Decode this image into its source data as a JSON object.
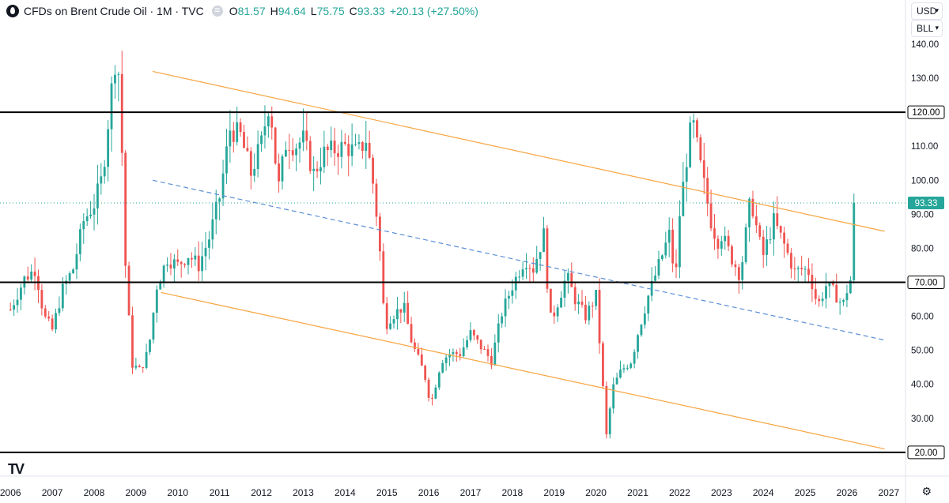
{
  "header": {
    "title": "CFDs on Brent Crude Oil · 1M · TVC",
    "equal_sign": "=",
    "o_label": "O",
    "o_value": "81.57",
    "h_label": "H",
    "h_value": "94.64",
    "l_label": "L",
    "l_value": "75.75",
    "c_label": "C",
    "c_value": "93.33",
    "change": "+20.13 (+27.50%)"
  },
  "controls": {
    "currency": "USD",
    "unit": "BLL"
  },
  "brand": "TV",
  "colors": {
    "up": "#26a69a",
    "down": "#ef5350",
    "channel": "#f7a541",
    "midline": "#5b8fd6",
    "level": "#000000"
  },
  "chart_data": {
    "type": "candlestick",
    "title": "CFDs on Brent Crude Oil · 1M · TVC",
    "xlim": [
      2005.75,
      2027.4
    ],
    "ylim": [
      13,
      153
    ],
    "x_ticks": [
      "2006",
      "2007",
      "2008",
      "2009",
      "2010",
      "2011",
      "2012",
      "2013",
      "2014",
      "2015",
      "2016",
      "2017",
      "2018",
      "2019",
      "2020",
      "2021",
      "2022",
      "2023",
      "2024",
      "2025",
      "2026",
      "2027"
    ],
    "y_ticks": [
      "30.00",
      "40.00",
      "50.00",
      "60.00",
      "80.00",
      "90.00",
      "100.00",
      "110.00",
      "130.00",
      "140.00"
    ],
    "last_price": 93.33,
    "last_price_label": "93.33",
    "horizontal_levels": [
      {
        "value": 120,
        "label": "120.00"
      },
      {
        "value": 70,
        "label": "70.00"
      },
      {
        "value": 20,
        "label": "20.00"
      }
    ],
    "trend_lines": [
      {
        "name": "channel-upper",
        "style": "solid",
        "from": [
          2009.4,
          132
        ],
        "to": [
          2026.9,
          85
        ]
      },
      {
        "name": "channel-lower",
        "style": "solid",
        "from": [
          2009.6,
          67
        ],
        "to": [
          2026.9,
          21
        ]
      },
      {
        "name": "channel-midline",
        "style": "dashed",
        "from": [
          2009.4,
          100
        ],
        "to": [
          2026.9,
          53
        ]
      }
    ],
    "series": [
      {
        "name": "Brent monthly close (approx.)",
        "points": [
          [
            2006.0,
            62
          ],
          [
            2006.33,
            71
          ],
          [
            2006.6,
            74
          ],
          [
            2006.8,
            60
          ],
          [
            2007.0,
            56
          ],
          [
            2007.25,
            68
          ],
          [
            2007.5,
            74
          ],
          [
            2007.75,
            88
          ],
          [
            2008.0,
            93
          ],
          [
            2008.2,
            101
          ],
          [
            2008.4,
            125
          ],
          [
            2008.55,
            140
          ],
          [
            2008.65,
            115
          ],
          [
            2008.75,
            75
          ],
          [
            2008.9,
            46
          ],
          [
            2009.1,
            44
          ],
          [
            2009.3,
            50
          ],
          [
            2009.5,
            69
          ],
          [
            2009.75,
            77
          ],
          [
            2010.0,
            75
          ],
          [
            2010.25,
            78
          ],
          [
            2010.5,
            75
          ],
          [
            2010.75,
            83
          ],
          [
            2011.0,
            95
          ],
          [
            2011.25,
            115
          ],
          [
            2011.5,
            113
          ],
          [
            2011.75,
            102
          ],
          [
            2012.0,
            111
          ],
          [
            2012.2,
            124
          ],
          [
            2012.4,
            97
          ],
          [
            2012.6,
            112
          ],
          [
            2012.8,
            110
          ],
          [
            2013.0,
            112
          ],
          [
            2013.25,
            102
          ],
          [
            2013.5,
            108
          ],
          [
            2013.75,
            109
          ],
          [
            2014.0,
            110
          ],
          [
            2014.3,
            108
          ],
          [
            2014.5,
            112
          ],
          [
            2014.65,
            101
          ],
          [
            2014.8,
            85
          ],
          [
            2014.95,
            57
          ],
          [
            2015.1,
            60
          ],
          [
            2015.4,
            63
          ],
          [
            2015.6,
            52
          ],
          [
            2015.9,
            43
          ],
          [
            2016.05,
            34
          ],
          [
            2016.3,
            47
          ],
          [
            2016.5,
            49
          ],
          [
            2016.75,
            49
          ],
          [
            2017.0,
            55
          ],
          [
            2017.25,
            51
          ],
          [
            2017.5,
            47
          ],
          [
            2017.75,
            61
          ],
          [
            2018.0,
            69
          ],
          [
            2018.3,
            77
          ],
          [
            2018.5,
            74
          ],
          [
            2018.75,
            84
          ],
          [
            2018.9,
            59
          ],
          [
            2019.0,
            61
          ],
          [
            2019.3,
            72
          ],
          [
            2019.5,
            65
          ],
          [
            2019.75,
            60
          ],
          [
            2020.0,
            66
          ],
          [
            2020.1,
            50
          ],
          [
            2020.25,
            25
          ],
          [
            2020.4,
            39
          ],
          [
            2020.6,
            44
          ],
          [
            2020.85,
            47
          ],
          [
            2021.0,
            55
          ],
          [
            2021.25,
            66
          ],
          [
            2021.5,
            75
          ],
          [
            2021.75,
            84
          ],
          [
            2021.9,
            70
          ],
          [
            2022.0,
            90
          ],
          [
            2022.15,
            105
          ],
          [
            2022.3,
            118
          ],
          [
            2022.5,
            104
          ],
          [
            2022.75,
            88
          ],
          [
            2022.9,
            82
          ],
          [
            2023.0,
            84
          ],
          [
            2023.25,
            77
          ],
          [
            2023.45,
            72
          ],
          [
            2023.7,
            95
          ],
          [
            2023.9,
            82
          ],
          [
            2024.0,
            78
          ],
          [
            2024.25,
            88
          ],
          [
            2024.5,
            81
          ],
          [
            2024.75,
            73
          ],
          [
            2024.95,
            74
          ],
          [
            2025.1,
            73
          ],
          [
            2025.3,
            63
          ],
          [
            2025.5,
            69
          ],
          [
            2025.7,
            67
          ],
          [
            2025.9,
            63
          ],
          [
            2026.05,
            70
          ],
          [
            2026.15,
            72
          ],
          [
            2026.2,
            93.33
          ]
        ]
      }
    ]
  }
}
